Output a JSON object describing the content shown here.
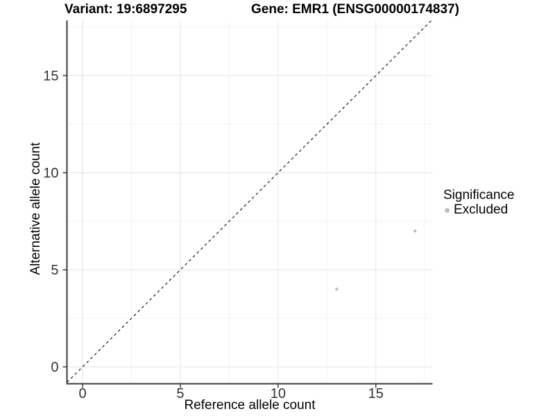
{
  "chart_data": {
    "type": "scatter",
    "titles": {
      "variant": "Variant: 19:6897295",
      "gene": "Gene: EMR1 (ENSG00000174837)"
    },
    "xlabel": "Reference allele count",
    "ylabel": "Alternative allele count",
    "xlim": [
      -0.8,
      17.9
    ],
    "ylim": [
      -0.87,
      17.84
    ],
    "x_major_ticks": [
      0,
      5,
      10,
      15
    ],
    "y_major_ticks": [
      0,
      5,
      10,
      15
    ],
    "x_minor_ticks": [
      2.5,
      7.5,
      12.5,
      17.5
    ],
    "y_minor_ticks": [
      2.5,
      7.5,
      12.5,
      17.5
    ],
    "grid": true,
    "series": [
      {
        "name": "Excluded",
        "color": "#bfbfbf",
        "points": [
          {
            "x": 13,
            "y": 4
          },
          {
            "x": 17,
            "y": 7
          }
        ]
      }
    ],
    "reference_line": {
      "type": "identity",
      "style": "dashed",
      "from": -0.8,
      "to": 17.84,
      "color": "#1a1a1a"
    },
    "legend": {
      "title": "Significance",
      "position": "right"
    },
    "style_colors": {
      "axis_line": "#3b3b3b",
      "tick_mark": "#3b3b3b",
      "tick_label": "#333333",
      "grid_major": "#e4e4e4",
      "grid_minor": "#f1f1f1"
    }
  }
}
